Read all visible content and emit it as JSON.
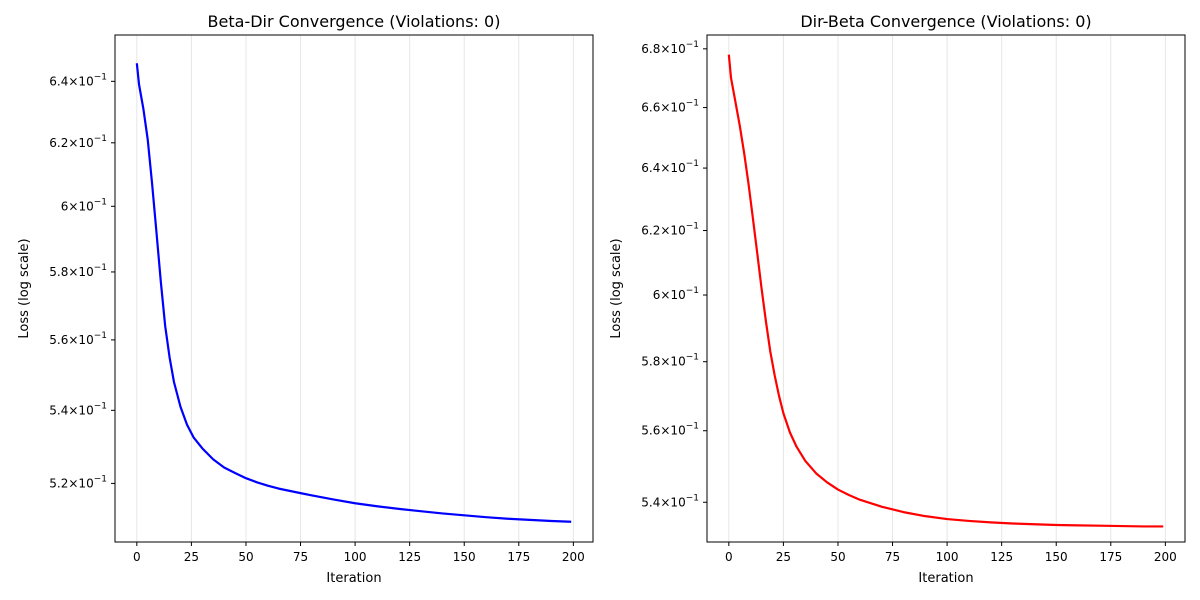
{
  "chart_data": [
    {
      "type": "line",
      "title": "Beta-Dir Convergence (Violations: 0)",
      "xlabel": "Iteration",
      "ylabel": "Loss (log scale)",
      "xlim": [
        -10,
        209
      ],
      "ylim": [
        0.5045,
        0.6555
      ],
      "yscale": "log",
      "grid": "x-only",
      "xticks": [
        0,
        25,
        50,
        75,
        100,
        125,
        150,
        175,
        200
      ],
      "xtick_labels": [
        "0",
        "25",
        "50",
        "75",
        "100",
        "125",
        "150",
        "175",
        "200"
      ],
      "yticks": [
        0.52,
        0.54,
        0.56,
        0.58,
        0.6,
        0.62,
        0.64
      ],
      "ytick_mantissas": [
        "5.2",
        "5.4",
        "5.6",
        "5.8",
        "6",
        "6.2",
        "6.4"
      ],
      "ytick_base": "×10",
      "ytick_exponent": "−1",
      "series": [
        {
          "color": "#0000ff",
          "x": [
            0,
            1,
            3,
            5,
            7,
            9,
            11,
            13,
            15,
            17,
            20,
            23,
            26,
            30,
            35,
            40,
            45,
            50,
            55,
            60,
            65,
            70,
            75,
            80,
            90,
            100,
            110,
            120,
            130,
            140,
            150,
            160,
            170,
            180,
            190,
            199
          ],
          "y": [
            0.646,
            0.639,
            0.631,
            0.621,
            0.607,
            0.592,
            0.577,
            0.564,
            0.555,
            0.548,
            0.541,
            0.536,
            0.5325,
            0.5295,
            0.5265,
            0.5243,
            0.5228,
            0.5214,
            0.5203,
            0.5194,
            0.5186,
            0.518,
            0.5174,
            0.5168,
            0.5157,
            0.5147,
            0.5139,
            0.5132,
            0.5126,
            0.512,
            0.5115,
            0.511,
            0.5106,
            0.5103,
            0.51,
            0.5098
          ]
        }
      ]
    },
    {
      "type": "line",
      "title": "Dir-Beta Convergence (Violations: 0)",
      "xlabel": "Iteration",
      "ylabel": "Loss (log scale)",
      "xlim": [
        -10,
        209
      ],
      "ylim": [
        0.5292,
        0.6848
      ],
      "yscale": "log",
      "grid": "x-only",
      "xticks": [
        0,
        25,
        50,
        75,
        100,
        125,
        150,
        175,
        200
      ],
      "xtick_labels": [
        "0",
        "25",
        "50",
        "75",
        "100",
        "125",
        "150",
        "175",
        "200"
      ],
      "yticks": [
        0.54,
        0.56,
        0.58,
        0.6,
        0.62,
        0.64,
        0.66,
        0.68
      ],
      "ytick_mantissas": [
        "5.4",
        "5.6",
        "5.8",
        "6",
        "6.2",
        "6.4",
        "6.6",
        "6.8"
      ],
      "ytick_base": "×10",
      "ytick_exponent": "−1",
      "series": [
        {
          "color": "#ff0000",
          "x": [
            0,
            1,
            3,
            5,
            7,
            9,
            11,
            13,
            15,
            17,
            19,
            21,
            23,
            25,
            28,
            31,
            35,
            40,
            45,
            50,
            55,
            60,
            70,
            80,
            90,
            100,
            110,
            120,
            130,
            140,
            150,
            160,
            170,
            180,
            190,
            199
          ],
          "y": [
            0.678,
            0.67,
            0.662,
            0.654,
            0.645,
            0.635,
            0.624,
            0.613,
            0.602,
            0.592,
            0.583,
            0.576,
            0.57,
            0.565,
            0.5595,
            0.5555,
            0.5515,
            0.548,
            0.5455,
            0.5435,
            0.542,
            0.5407,
            0.5388,
            0.5373,
            0.5362,
            0.5354,
            0.5349,
            0.5345,
            0.5342,
            0.534,
            0.5338,
            0.5337,
            0.5336,
            0.5335,
            0.5334,
            0.5334
          ]
        }
      ]
    }
  ]
}
